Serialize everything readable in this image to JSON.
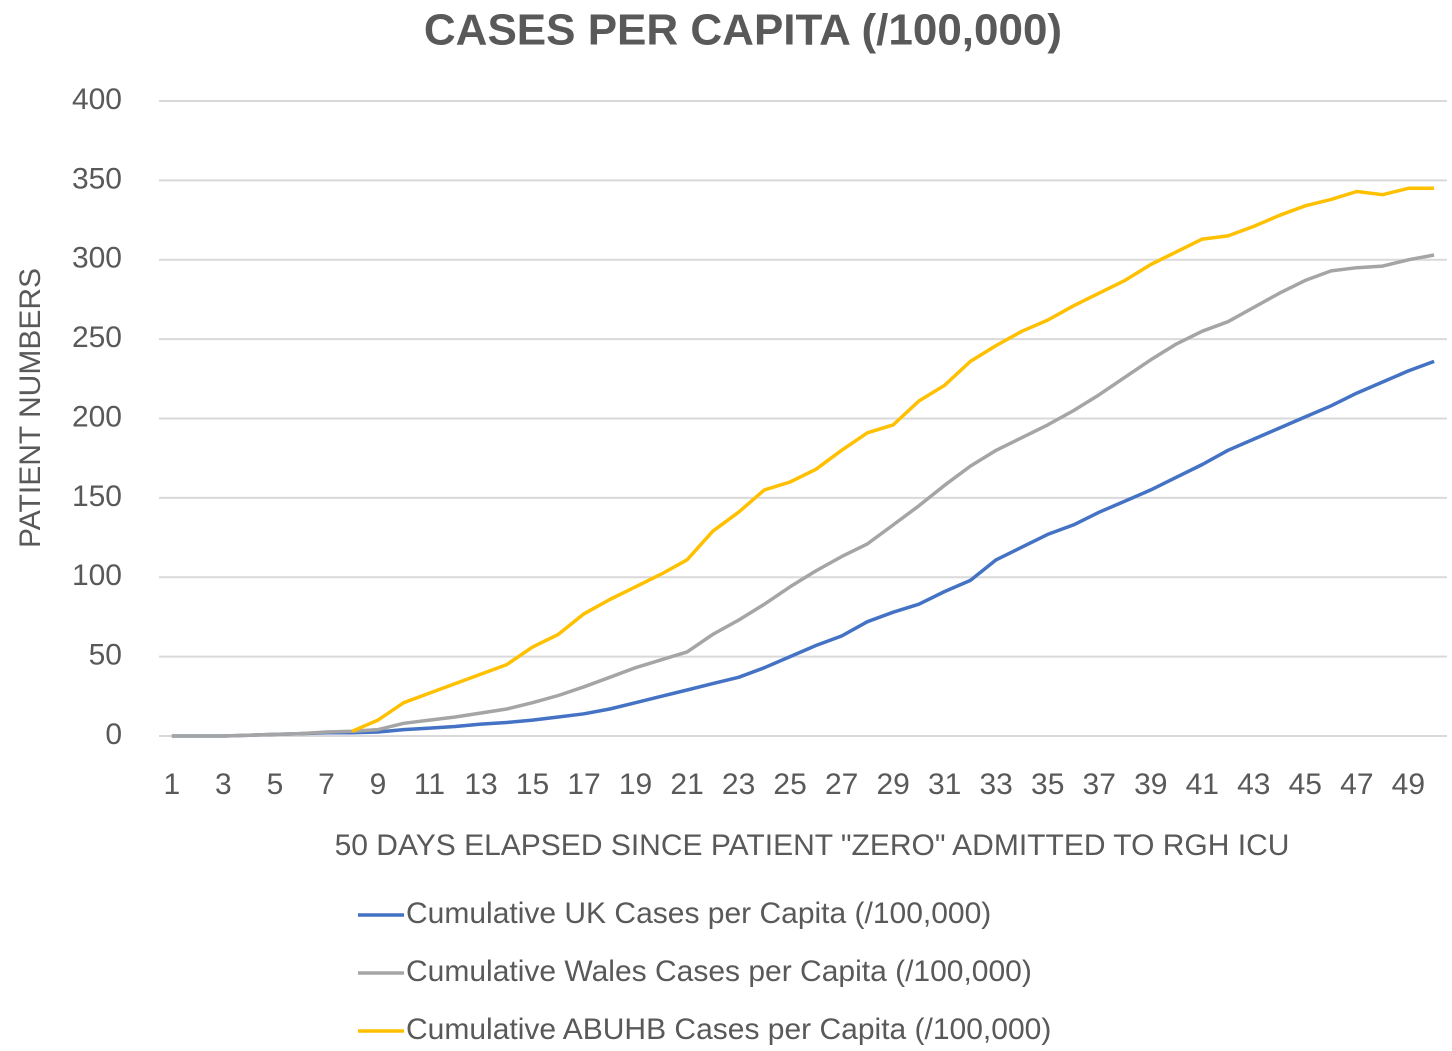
{
  "chart_data": {
    "type": "line",
    "title": "CASES PER CAPITA (/100,000)",
    "x_label": "50 DAYS ELAPSED SINCE PATIENT \"ZERO\" ADMITTED TO RGH ICU",
    "y_label": "PATIENT NUMBERS",
    "categories": [
      "1",
      null,
      "3",
      null,
      "5",
      null,
      "7",
      null,
      "9",
      null,
      "11",
      null,
      "13",
      null,
      "15",
      null,
      "17",
      null,
      "19",
      null,
      "21",
      null,
      "23",
      null,
      "25",
      null,
      "27",
      null,
      "29",
      null,
      "31",
      null,
      "33",
      null,
      "35",
      null,
      "37",
      null,
      "39",
      null,
      "41",
      null,
      "43",
      null,
      "45",
      null,
      "47",
      null,
      "49",
      null
    ],
    "ylim": [
      0,
      400
    ],
    "yticks": [
      0,
      50,
      100,
      150,
      200,
      250,
      300,
      350,
      400
    ],
    "grid": true,
    "legend": "bottom",
    "series": [
      {
        "name": "Cumulative UK Cases per Capita (/100,000)",
        "color": "#4472c4",
        "values": [
          0,
          0,
          0,
          0.5,
          1,
          1.5,
          2,
          2,
          2.5,
          4,
          5,
          6,
          7.5,
          8.5,
          10,
          12,
          14,
          17,
          21,
          25,
          29,
          33,
          37,
          43,
          50,
          57,
          63,
          72,
          78,
          83,
          91,
          98,
          111,
          119,
          127,
          133,
          141,
          148,
          155,
          163,
          171,
          180,
          187,
          194,
          201,
          208,
          216,
          223,
          230,
          236
        ]
      },
      {
        "name": "Cumulative Wales Cases per Capita (/100,000)",
        "color": "#a5a5a5",
        "values": [
          0,
          0,
          0,
          0.5,
          1,
          1.5,
          2.5,
          3,
          4,
          8,
          10,
          12,
          14.5,
          17,
          21,
          25.5,
          31,
          37,
          43,
          48,
          53,
          64,
          73,
          83,
          94,
          104,
          113,
          121,
          133,
          145,
          158,
          170,
          180,
          188,
          196,
          205,
          215,
          226,
          237,
          247,
          255,
          261,
          270,
          279,
          287,
          293,
          295,
          296,
          300,
          303
        ]
      },
      {
        "name": "Cumulative ABUHB Cases per Capita (/100,000)",
        "color": "#ffc000",
        "values": [
          null,
          null,
          null,
          null,
          null,
          null,
          null,
          3,
          10,
          21,
          27,
          33,
          39,
          45,
          56,
          64,
          77,
          86,
          94,
          102,
          111,
          129,
          141,
          155,
          160,
          168,
          180,
          191,
          196,
          211,
          221,
          236,
          246,
          255,
          262,
          271,
          279,
          287,
          297,
          305,
          313,
          315,
          321,
          328,
          334,
          338,
          343,
          341,
          345,
          345
        ]
      }
    ]
  }
}
